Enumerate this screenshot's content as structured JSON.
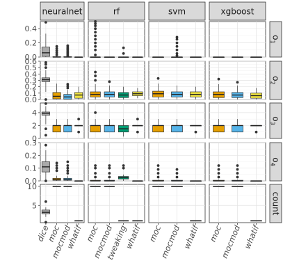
{
  "chart_data": {
    "type": "boxplot",
    "title": "",
    "xlabel": "",
    "ylabel": "",
    "model_strips": [
      "neuralnet",
      "rf",
      "svm",
      "xgboost"
    ],
    "objective_strips": [
      "o1",
      "o2",
      "o3",
      "o4",
      "count"
    ],
    "objective_labels": [
      {
        "base": "o",
        "sub": "1"
      },
      {
        "base": "o",
        "sub": "2"
      },
      {
        "base": "o",
        "sub": "3"
      },
      {
        "base": "o",
        "sub": "4"
      },
      {
        "base": "count",
        "sub": ""
      }
    ],
    "x_categories": {
      "neuralnet": [
        "dice",
        "moc",
        "mocmod",
        "whatif"
      ],
      "rf": [
        "moc",
        "mocmod",
        "tweaking",
        "whatif"
      ],
      "svm": [
        "moc",
        "mocmod",
        "whatif"
      ],
      "xgboost": [
        "moc",
        "mocmod",
        "whatif"
      ]
    },
    "method_colors": {
      "dice": "#aaaaaa",
      "moc": "#E69F00",
      "mocmod": "#56B4E9",
      "tweaking": "#009E73",
      "whatif": "#F0E442"
    },
    "y_axes": [
      {
        "range": [
          0,
          0.5
        ],
        "ticks": [
          0,
          0.2,
          0.4
        ],
        "tick_labels": [
          "0.0",
          "0.2",
          "0.4"
        ]
      },
      {
        "range": [
          0,
          0.6
        ],
        "ticks": [
          0,
          0.1,
          0.2,
          0.3,
          0.4,
          0.5,
          0.6
        ],
        "tick_labels": [
          "0.0",
          "0.1",
          "0.2",
          "0.3",
          "0.4",
          "0.5",
          "0.6"
        ]
      },
      {
        "range": [
          0,
          5.5
        ],
        "ticks": [
          0,
          2,
          4
        ],
        "tick_labels": [
          "0",
          "2",
          "4"
        ]
      },
      {
        "range": [
          0,
          0.3
        ],
        "ticks": [
          0,
          0.1,
          0.2,
          0.3
        ],
        "tick_labels": [
          "0.0",
          "0.1",
          "0.2",
          "0.3"
        ]
      },
      {
        "range": [
          0.5,
          10.5
        ],
        "ticks": [
          5,
          10
        ],
        "tick_labels": [
          "5",
          "10"
        ]
      }
    ],
    "grid": true,
    "legend": "none",
    "boxes": {
      "neuralnet": [
        [
          {
            "method": "dice",
            "min": 0,
            "q1": 0.01,
            "median": 0.06,
            "q3": 0.14,
            "max": 0.33,
            "outliers": [
              0.49
            ]
          },
          {
            "method": "moc",
            "min": 0,
            "q1": 0,
            "median": 0,
            "q3": 0.005,
            "max": 0.01,
            "outliers": [
              0.03,
              0.06,
              0.09,
              0.12,
              0.15
            ]
          },
          {
            "method": "mocmod",
            "min": 0,
            "q1": 0,
            "median": 0,
            "q3": 0.005,
            "max": 0.01,
            "outliers": [
              0.02,
              0.04,
              0.06,
              0.08,
              0.1,
              0.12,
              0.14,
              0.16
            ]
          },
          {
            "method": "whatif",
            "min": 0,
            "q1": 0,
            "median": 0,
            "q3": 0,
            "max": 0,
            "outliers": []
          }
        ],
        [
          {
            "method": "dice",
            "min": 0.12,
            "q1": 0.28,
            "median": 0.31,
            "q3": 0.34,
            "max": 0.46,
            "outliers": [
              0.0,
              0.5,
              0.55,
              0.58
            ]
          },
          {
            "method": "moc",
            "min": 0,
            "q1": 0.01,
            "median": 0.05,
            "q3": 0.11,
            "max": 0.25,
            "outliers": []
          },
          {
            "method": "mocmod",
            "min": 0,
            "q1": 0.005,
            "median": 0.04,
            "q3": 0.08,
            "max": 0.15,
            "outliers": [
              0.18,
              0.21,
              0.24
            ]
          },
          {
            "method": "whatif",
            "min": 0,
            "q1": 0.02,
            "median": 0.07,
            "q3": 0.11,
            "max": 0.2,
            "outliers": []
          }
        ],
        [
          {
            "method": "dice",
            "min": 2.2,
            "q1": 3.6,
            "median": 3.9,
            "q3": 4.1,
            "max": 5.0,
            "outliers": [
              0.5,
              1.5,
              5.4
            ]
          },
          {
            "method": "moc",
            "min": 1,
            "q1": 1,
            "median": 2,
            "q3": 2,
            "max": 3,
            "outliers": []
          },
          {
            "method": "mocmod",
            "min": 1,
            "q1": 1,
            "median": 2,
            "q3": 2,
            "max": 3,
            "outliers": []
          },
          {
            "method": "whatif",
            "min": 2,
            "q1": 2,
            "median": 2,
            "q3": 2,
            "max": 2,
            "outliers": [
              1,
              3
            ]
          }
        ],
        [
          {
            "method": "dice",
            "min": 0.0,
            "q1": 0.07,
            "median": 0.11,
            "q3": 0.15,
            "max": 0.24,
            "outliers": [
              0.0,
              0.28
            ]
          },
          {
            "method": "moc",
            "min": 0,
            "q1": 0.005,
            "median": 0.01,
            "q3": 0.02,
            "max": 0.04,
            "outliers": [
              0.08,
              0.1,
              0.12,
              0.14
            ]
          },
          {
            "method": "mocmod",
            "min": 0,
            "q1": 0.005,
            "median": 0.01,
            "q3": 0.02,
            "max": 0.04,
            "outliers": [
              0.06,
              0.08,
              0.1,
              0.12,
              0.15
            ]
          },
          {
            "method": "whatif",
            "min": 0,
            "q1": 0,
            "median": 0,
            "q3": 0,
            "max": 0,
            "outliers": []
          }
        ],
        [
          {
            "method": "dice",
            "min": 2,
            "q1": 2.8,
            "median": 3.2,
            "q3": 3.8,
            "max": 4.5,
            "outliers": [
              0.6,
              6
            ]
          },
          {
            "method": "moc",
            "min": 10,
            "q1": 10,
            "median": 10,
            "q3": 10,
            "max": 10,
            "outliers": []
          },
          {
            "method": "mocmod",
            "min": 10,
            "q1": 10,
            "median": 10,
            "q3": 10,
            "max": 10,
            "outliers": []
          },
          {
            "method": "whatif",
            "min": 1,
            "q1": 1,
            "median": 1,
            "q3": 1,
            "max": 1,
            "outliers": []
          }
        ]
      ],
      "rf": [
        [
          {
            "method": "moc",
            "min": 0,
            "q1": 0,
            "median": 0,
            "q3": 0,
            "max": 0,
            "outliers": [
              0.03,
              0.1,
              0.15,
              0.2,
              0.25,
              0.3,
              0.35,
              0.4,
              0.44,
              0.47,
              0.5
            ]
          },
          {
            "method": "mocmod",
            "min": 0,
            "q1": 0,
            "median": 0,
            "q3": 0,
            "max": 0,
            "outliers": []
          },
          {
            "method": "tweaking",
            "min": 0,
            "q1": 0,
            "median": 0,
            "q3": 0,
            "max": 0,
            "outliers": [
              0.05,
              0.13
            ]
          },
          {
            "method": "whatif",
            "min": 0,
            "q1": 0,
            "median": 0,
            "q3": 0,
            "max": 0,
            "outliers": []
          }
        ],
        [
          {
            "method": "moc",
            "min": 0,
            "q1": 0.04,
            "median": 0.08,
            "q3": 0.12,
            "max": 0.24,
            "outliers": [
              0.3,
              0.37,
              0.43
            ]
          },
          {
            "method": "mocmod",
            "min": 0,
            "q1": 0.04,
            "median": 0.08,
            "q3": 0.12,
            "max": 0.22,
            "outliers": [
              0.28
            ]
          },
          {
            "method": "tweaking",
            "min": 0,
            "q1": 0.03,
            "median": 0.07,
            "q3": 0.11,
            "max": 0.2,
            "outliers": []
          },
          {
            "method": "whatif",
            "min": 0.02,
            "q1": 0.06,
            "median": 0.09,
            "q3": 0.12,
            "max": 0.18,
            "outliers": []
          }
        ],
        [
          {
            "method": "moc",
            "min": 1,
            "q1": 1,
            "median": 2,
            "q3": 2,
            "max": 3,
            "outliers": [
              4
            ]
          },
          {
            "method": "mocmod",
            "min": 1,
            "q1": 1,
            "median": 2,
            "q3": 2,
            "max": 3,
            "outliers": []
          },
          {
            "method": "tweaking",
            "min": 0.3,
            "q1": 1,
            "median": 1.5,
            "q3": 2,
            "max": 3,
            "outliers": []
          },
          {
            "method": "whatif",
            "min": 2,
            "q1": 2,
            "median": 2,
            "q3": 2,
            "max": 2,
            "outliers": [
              1,
              3
            ]
          }
        ],
        [
          {
            "method": "moc",
            "min": 0,
            "q1": 0,
            "median": 0,
            "q3": 0.005,
            "max": 0.01,
            "outliers": [
              0.03,
              0.06,
              0.1,
              0.12
            ]
          },
          {
            "method": "mocmod",
            "min": 0,
            "q1": 0,
            "median": 0,
            "q3": 0.005,
            "max": 0.01,
            "outliers": [
              0.03,
              0.06,
              0.1,
              0.12
            ]
          },
          {
            "method": "tweaking",
            "min": 0,
            "q1": 0.015,
            "median": 0.025,
            "q3": 0.035,
            "max": 0.05,
            "outliers": [
              0.1,
              0.12
            ]
          },
          {
            "method": "whatif",
            "min": 0,
            "q1": 0,
            "median": 0,
            "q3": 0,
            "max": 0,
            "outliers": []
          }
        ],
        [
          {
            "method": "moc",
            "min": 10,
            "q1": 10,
            "median": 10,
            "q3": 10,
            "max": 10,
            "outliers": []
          },
          {
            "method": "mocmod",
            "min": 10,
            "q1": 10,
            "median": 10,
            "q3": 10,
            "max": 10,
            "outliers": []
          },
          {
            "method": "tweaking",
            "min": 1,
            "q1": 1,
            "median": 1,
            "q3": 1,
            "max": 1,
            "outliers": []
          },
          {
            "method": "whatif",
            "min": 1,
            "q1": 1,
            "median": 1,
            "q3": 1,
            "max": 1,
            "outliers": []
          }
        ]
      ],
      "svm": [
        [
          {
            "method": "moc",
            "min": 0,
            "q1": 0,
            "median": 0,
            "q3": 0,
            "max": 0,
            "outliers": []
          },
          {
            "method": "mocmod",
            "min": 0,
            "q1": 0,
            "median": 0,
            "q3": 0,
            "max": 0,
            "outliers": [
              0.02,
              0.05,
              0.1,
              0.15,
              0.2,
              0.25,
              0.28
            ]
          },
          {
            "method": "whatif",
            "min": 0,
            "q1": 0,
            "median": 0,
            "q3": 0,
            "max": 0,
            "outliers": []
          }
        ],
        [
          {
            "method": "moc",
            "min": 0,
            "q1": 0.04,
            "median": 0.09,
            "q3": 0.13,
            "max": 0.25,
            "outliers": [
              0.33
            ]
          },
          {
            "method": "mocmod",
            "min": 0,
            "q1": 0.04,
            "median": 0.08,
            "q3": 0.12,
            "max": 0.22,
            "outliers": []
          },
          {
            "method": "whatif",
            "min": 0,
            "q1": 0.04,
            "median": 0.08,
            "q3": 0.12,
            "max": 0.2,
            "outliers": []
          }
        ],
        [
          {
            "method": "moc",
            "min": 1,
            "q1": 1,
            "median": 2,
            "q3": 2,
            "max": 3,
            "outliers": []
          },
          {
            "method": "mocmod",
            "min": 1,
            "q1": 1,
            "median": 2,
            "q3": 2,
            "max": 3,
            "outliers": []
          },
          {
            "method": "whatif",
            "min": 2,
            "q1": 2,
            "median": 2,
            "q3": 2,
            "max": 2,
            "outliers": [
              1
            ]
          }
        ],
        [
          {
            "method": "moc",
            "min": 0,
            "q1": 0,
            "median": 0,
            "q3": 0.005,
            "max": 0.01,
            "outliers": [
              0.03,
              0.06,
              0.09,
              0.12
            ]
          },
          {
            "method": "mocmod",
            "min": 0,
            "q1": 0,
            "median": 0,
            "q3": 0.005,
            "max": 0.01,
            "outliers": [
              0.03,
              0.06,
              0.09
            ]
          },
          {
            "method": "whatif",
            "min": 0,
            "q1": 0,
            "median": 0,
            "q3": 0,
            "max": 0,
            "outliers": []
          }
        ],
        [
          {
            "method": "moc",
            "min": 10,
            "q1": 10,
            "median": 10,
            "q3": 10,
            "max": 10,
            "outliers": []
          },
          {
            "method": "mocmod",
            "min": 10,
            "q1": 10,
            "median": 10,
            "q3": 10,
            "max": 10,
            "outliers": []
          },
          {
            "method": "whatif",
            "min": 1,
            "q1": 1,
            "median": 1,
            "q3": 1,
            "max": 1,
            "outliers": []
          }
        ]
      ],
      "xgboost": [
        [
          {
            "method": "moc",
            "min": 0,
            "q1": 0,
            "median": 0,
            "q3": 0,
            "max": 0,
            "outliers": []
          },
          {
            "method": "mocmod",
            "min": 0,
            "q1": 0,
            "median": 0,
            "q3": 0,
            "max": 0,
            "outliers": []
          },
          {
            "method": "whatif",
            "min": 0,
            "q1": 0,
            "median": 0,
            "q3": 0,
            "max": 0,
            "outliers": []
          }
        ],
        [
          {
            "method": "moc",
            "min": 0,
            "q1": 0.03,
            "median": 0.08,
            "q3": 0.12,
            "max": 0.24,
            "outliers": [
              0.32
            ]
          },
          {
            "method": "mocmod",
            "min": 0,
            "q1": 0.03,
            "median": 0.07,
            "q3": 0.11,
            "max": 0.22,
            "outliers": [
              0.27
            ]
          },
          {
            "method": "whatif",
            "min": 0,
            "q1": 0.02,
            "median": 0.06,
            "q3": 0.1,
            "max": 0.18,
            "outliers": []
          }
        ],
        [
          {
            "method": "moc",
            "min": 1,
            "q1": 1,
            "median": 2,
            "q3": 2,
            "max": 3,
            "outliers": []
          },
          {
            "method": "mocmod",
            "min": 1,
            "q1": 1,
            "median": 2,
            "q3": 2,
            "max": 3,
            "outliers": []
          },
          {
            "method": "whatif",
            "min": 2,
            "q1": 2,
            "median": 2,
            "q3": 2,
            "max": 2,
            "outliers": [
              1
            ]
          }
        ],
        [
          {
            "method": "moc",
            "min": 0,
            "q1": 0,
            "median": 0,
            "q3": 0.005,
            "max": 0.01,
            "outliers": [
              0.03,
              0.06,
              0.09,
              0.12
            ]
          },
          {
            "method": "mocmod",
            "min": 0,
            "q1": 0,
            "median": 0,
            "q3": 0.005,
            "max": 0.01,
            "outliers": [
              0.03,
              0.06,
              0.09,
              0.12
            ]
          },
          {
            "method": "whatif",
            "min": 0,
            "q1": 0,
            "median": 0,
            "q3": 0,
            "max": 0,
            "outliers": []
          }
        ],
        [
          {
            "method": "moc",
            "min": 10,
            "q1": 10,
            "median": 10,
            "q3": 10,
            "max": 10,
            "outliers": []
          },
          {
            "method": "mocmod",
            "min": 10,
            "q1": 10,
            "median": 10,
            "q3": 10,
            "max": 10,
            "outliers": []
          },
          {
            "method": "whatif",
            "min": 1,
            "q1": 1,
            "median": 1,
            "q3": 1,
            "max": 1,
            "outliers": []
          }
        ]
      ]
    }
  }
}
